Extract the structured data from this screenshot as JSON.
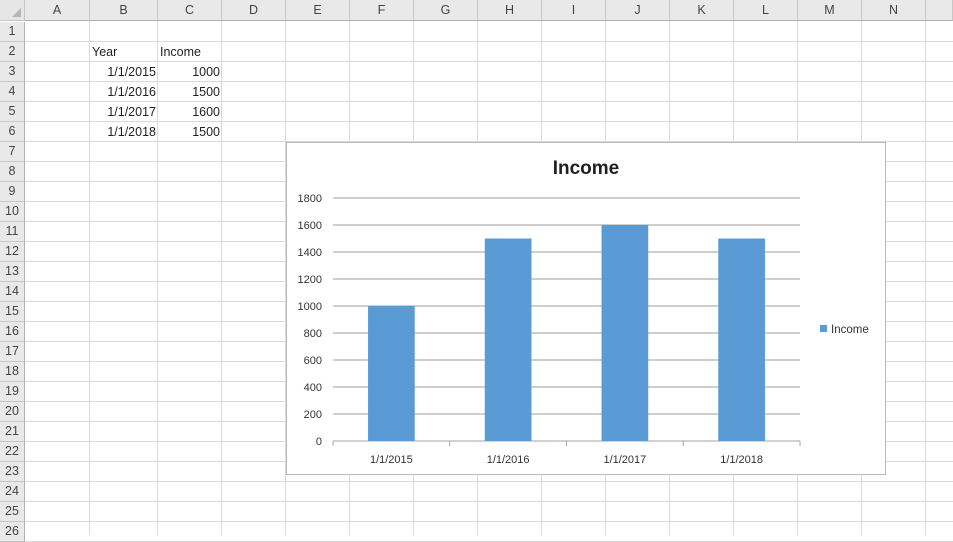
{
  "sheet": {
    "columns": [
      "A",
      "B",
      "C",
      "D",
      "E",
      "F",
      "G",
      "H",
      "I",
      "J",
      "K",
      "L",
      "M",
      "N"
    ],
    "rows": [
      "1",
      "2",
      "3",
      "4",
      "5",
      "6",
      "7",
      "8",
      "9",
      "10",
      "11",
      "12",
      "13",
      "14",
      "15",
      "16",
      "17",
      "18",
      "19",
      "20",
      "21",
      "22",
      "23",
      "24",
      "25",
      "26"
    ],
    "table": {
      "header": {
        "year": "Year",
        "income": "Income"
      },
      "rows": [
        {
          "year": "1/1/2015",
          "income": "1000"
        },
        {
          "year": "1/1/2016",
          "income": "1500"
        },
        {
          "year": "1/1/2017",
          "income": "1600"
        },
        {
          "year": "1/1/2018",
          "income": "1500"
        }
      ]
    }
  },
  "chart_data": {
    "type": "bar",
    "title": "Income",
    "categories": [
      "1/1/2015",
      "1/1/2016",
      "1/1/2017",
      "1/1/2018"
    ],
    "series": [
      {
        "name": "Income",
        "values": [
          1000,
          1500,
          1600,
          1500
        ],
        "color": "#5b9bd5"
      }
    ],
    "ylim": [
      0,
      1800
    ],
    "yticks": [
      0,
      200,
      400,
      600,
      800,
      1000,
      1200,
      1400,
      1600,
      1800
    ],
    "ytick_labels": [
      "0",
      "200",
      "400",
      "600",
      "800",
      "1000",
      "1200",
      "1400",
      "1600",
      "1800"
    ],
    "grid": true,
    "legend": "right"
  }
}
